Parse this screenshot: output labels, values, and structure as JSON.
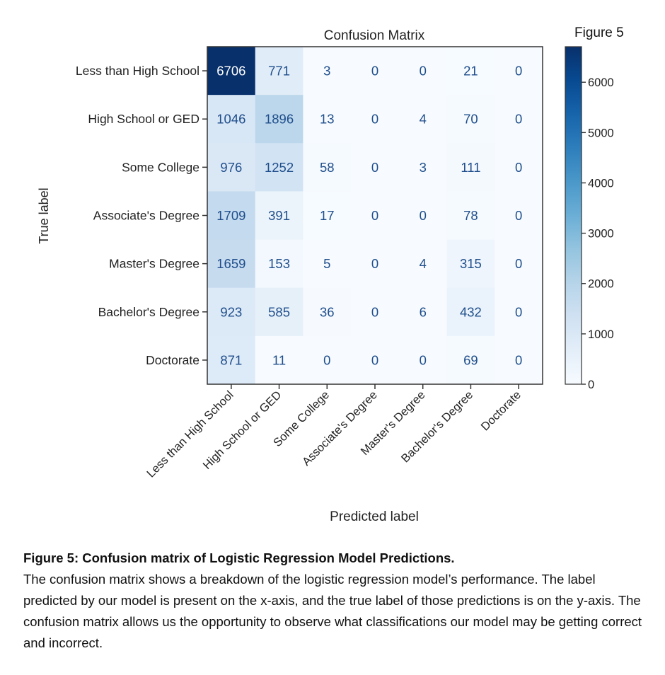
{
  "figure_tag": "Figure 5",
  "caption": {
    "title": "Figure 5: Confusion matrix of Logistic Regression Model Predictions.",
    "body": "The confusion matrix shows a breakdown of the logistic regression model’s performance. The label predicted by our model is present on the x-axis, and the true label of those predictions is on the y-axis. The confusion matrix allows us the opportunity to observe what classifications our model may be getting correct and incorrect."
  },
  "chart_data": {
    "type": "heatmap",
    "title": "Confusion Matrix",
    "xlabel": "Predicted label",
    "ylabel": "True label",
    "x_categories": [
      "Less than High School",
      "High School or GED",
      "Some College",
      "Associate's Degree",
      "Master's Degree",
      "Bachelor's Degree",
      "Doctorate"
    ],
    "y_categories": [
      "Less than High School",
      "High School or GED",
      "Some College",
      "Associate's Degree",
      "Master's Degree",
      "Bachelor's Degree",
      "Doctorate"
    ],
    "values": [
      [
        6706,
        771,
        3,
        0,
        0,
        21,
        0
      ],
      [
        1046,
        1896,
        13,
        0,
        4,
        70,
        0
      ],
      [
        976,
        1252,
        58,
        0,
        3,
        111,
        0
      ],
      [
        1709,
        391,
        17,
        0,
        0,
        78,
        0
      ],
      [
        1659,
        153,
        5,
        0,
        4,
        315,
        0
      ],
      [
        923,
        585,
        36,
        0,
        6,
        432,
        0
      ],
      [
        871,
        11,
        0,
        0,
        0,
        69,
        0
      ]
    ],
    "colormap": "Blues",
    "colorbar": {
      "min": 0,
      "max": 6706,
      "ticks": [
        0,
        1000,
        2000,
        3000,
        4000,
        5000,
        6000
      ]
    },
    "grid": false
  }
}
